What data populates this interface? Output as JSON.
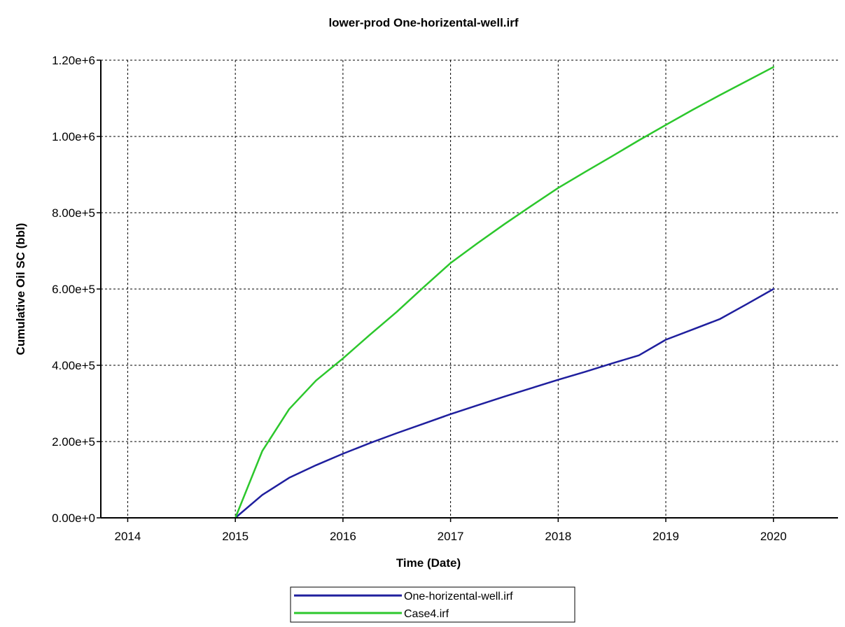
{
  "chart_data": {
    "type": "line",
    "title": "lower-prod One-horizental-well.irf",
    "xlabel": "Time (Date)",
    "ylabel": "Cumulative Oil SC (bbl)",
    "xlim": [
      2013.75,
      2020.6
    ],
    "ylim": [
      0,
      1200000
    ],
    "x_ticks": [
      2014,
      2015,
      2016,
      2017,
      2018,
      2019,
      2020
    ],
    "x_tick_labels": [
      "2014",
      "2015",
      "2016",
      "2017",
      "2018",
      "2019",
      "2020"
    ],
    "y_ticks": [
      0,
      200000,
      400000,
      600000,
      800000,
      1000000,
      1200000
    ],
    "y_tick_labels": [
      "0.00e+0",
      "2.00e+5",
      "4.00e+5",
      "6.00e+5",
      "8.00e+5",
      "1.00e+6",
      "1.20e+6"
    ],
    "grid": true,
    "legend_position": "bottom-center",
    "series": [
      {
        "name": "One-horizental-well.irf",
        "color": "#1f1f9e",
        "x": [
          2015.0,
          2015.25,
          2015.5,
          2015.75,
          2016.0,
          2016.25,
          2016.5,
          2016.75,
          2017.0,
          2017.25,
          2017.5,
          2017.75,
          2018.0,
          2018.25,
          2018.5,
          2018.75,
          2019.0,
          2019.25,
          2019.5,
          2019.75,
          2020.0
        ],
        "values": [
          0,
          60000,
          105000,
          138000,
          168000,
          196000,
          222000,
          247000,
          272000,
          295000,
          318000,
          340000,
          362000,
          383000,
          405000,
          426000,
          467000,
          494000,
          521000,
          560000,
          600000
        ]
      },
      {
        "name": "Case4.irf",
        "color": "#2cc72c",
        "x": [
          2015.0,
          2015.25,
          2015.5,
          2015.75,
          2016.0,
          2016.25,
          2016.5,
          2016.75,
          2017.0,
          2017.25,
          2017.5,
          2017.75,
          2018.0,
          2018.25,
          2018.5,
          2018.75,
          2019.0,
          2019.25,
          2019.5,
          2019.75,
          2020.0
        ],
        "values": [
          0,
          175000,
          285000,
          360000,
          418000,
          480000,
          540000,
          605000,
          668000,
          720000,
          770000,
          818000,
          865000,
          907000,
          948000,
          990000,
          1030000,
          1070000,
          1108000,
          1145000,
          1182000
        ]
      }
    ]
  }
}
